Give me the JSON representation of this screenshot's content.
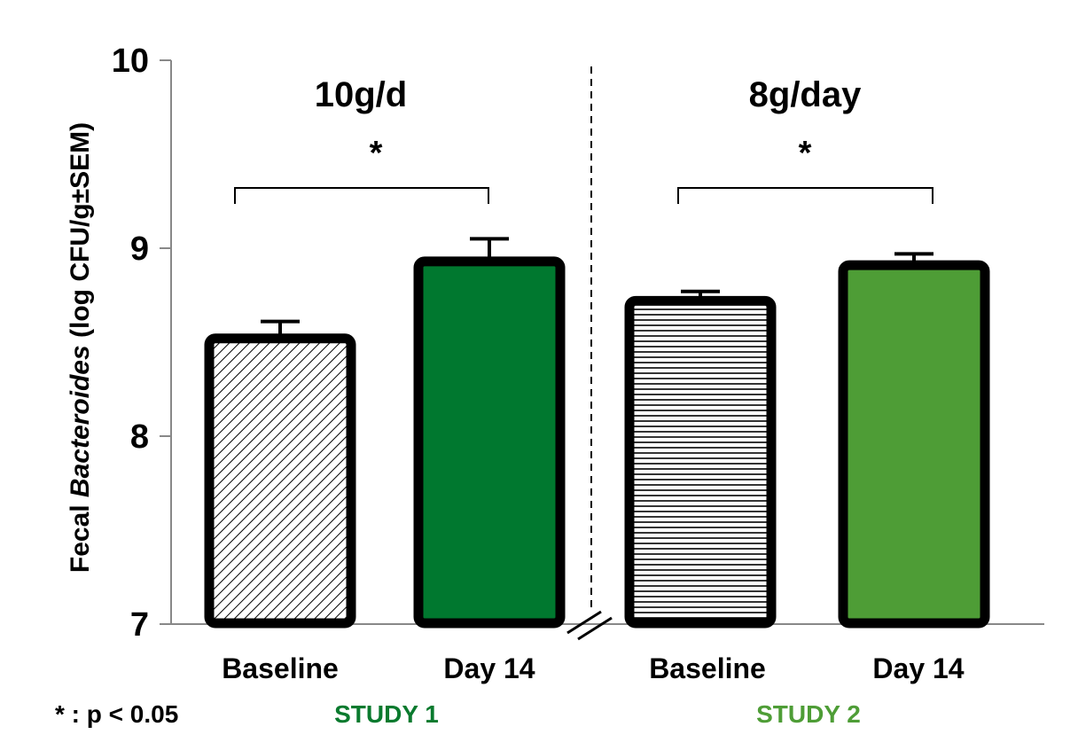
{
  "chart_data": {
    "type": "bar",
    "ylabel": {
      "prefix": "Fecal ",
      "italic": "Bacteroides",
      "suffix": " (log CFU/g±SEM)"
    },
    "ylim": [
      7,
      10
    ],
    "yticks": [
      "7",
      "8",
      "9",
      "10"
    ],
    "groups": [
      {
        "label": "10g/d",
        "significance": "*",
        "study": "STUDY 1",
        "study_color": "#0a7a2e",
        "bars": [
          {
            "category": "Baseline",
            "value": 8.52,
            "sem": 0.09,
            "fill": "diagonal-hatch"
          },
          {
            "category": "Day 14",
            "value": 8.93,
            "sem": 0.12,
            "fill": "#00782f"
          }
        ]
      },
      {
        "label": "8g/day",
        "significance": "*",
        "study": "STUDY 2",
        "study_color": "#4e9d36",
        "bars": [
          {
            "category": "Baseline",
            "value": 8.72,
            "sem": 0.05,
            "fill": "horizontal-hatch"
          },
          {
            "category": "Day 14",
            "value": 8.91,
            "sem": 0.06,
            "fill": "#4e9d36"
          }
        ]
      }
    ],
    "note": "* : p < 0.05",
    "axis_break": true
  }
}
